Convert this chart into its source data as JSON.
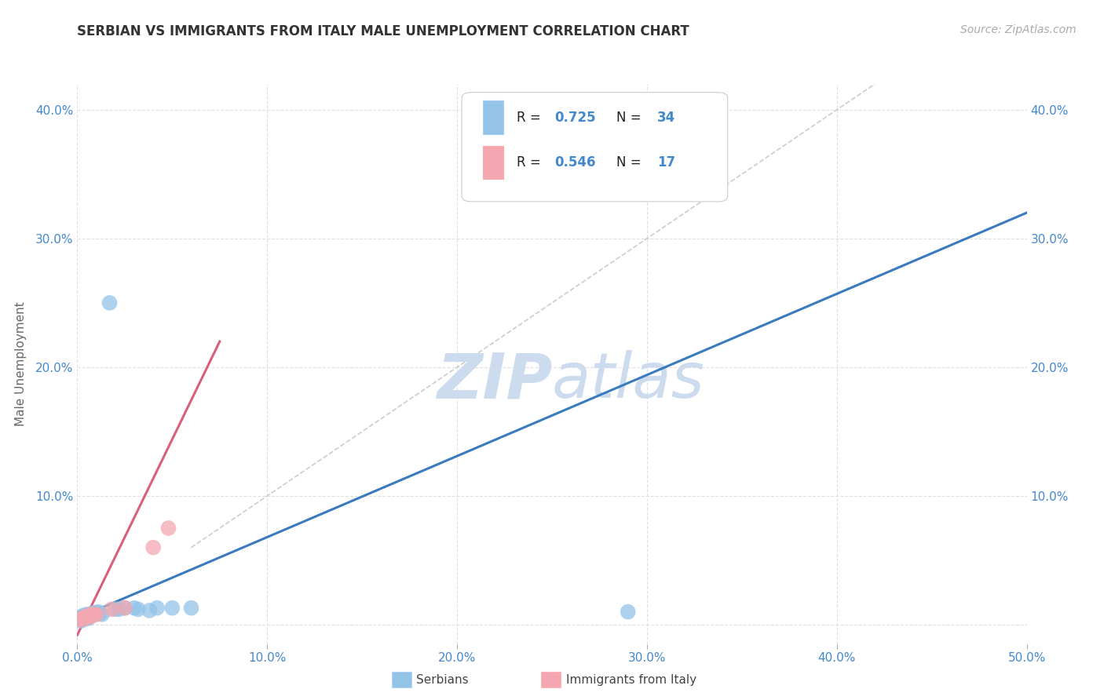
{
  "title": "SERBIAN VS IMMIGRANTS FROM ITALY MALE UNEMPLOYMENT CORRELATION CHART",
  "source": "Source: ZipAtlas.com",
  "ylabel": "Male Unemployment",
  "xmin": 0.0,
  "xmax": 0.5,
  "ymin": -0.015,
  "ymax": 0.42,
  "xticks": [
    0.0,
    0.1,
    0.2,
    0.3,
    0.4,
    0.5
  ],
  "xtick_labels": [
    "0.0%",
    "10.0%",
    "20.0%",
    "30.0%",
    "40.0%",
    "50.0%"
  ],
  "yticks": [
    0.0,
    0.1,
    0.2,
    0.3,
    0.4
  ],
  "ytick_labels": [
    "",
    "10.0%",
    "20.0%",
    "30.0%",
    "40.0%"
  ],
  "legend_r1": "R = 0.725",
  "legend_n1": "N = 34",
  "legend_r2": "R = 0.546",
  "legend_n2": "N = 17",
  "blue_color": "#93c4e8",
  "pink_color": "#f4a7b0",
  "blue_line_color": "#3a7bbf",
  "pink_line_color": "#d9607a",
  "diagonal_color": "#cccccc",
  "title_color": "#333333",
  "axis_color": "#4488cc",
  "grid_color": "#e0e0e0",
  "watermark_text": "ZIPatlas",
  "watermark_color": "#ccdcee",
  "blue_scatter": [
    [
      0.001,
      0.005
    ],
    [
      0.002,
      0.004
    ],
    [
      0.002,
      0.003
    ],
    [
      0.003,
      0.004
    ],
    [
      0.003,
      0.006
    ],
    [
      0.003,
      0.007
    ],
    [
      0.004,
      0.005
    ],
    [
      0.004,
      0.006
    ],
    [
      0.004,
      0.007
    ],
    [
      0.005,
      0.005
    ],
    [
      0.005,
      0.006
    ],
    [
      0.005,
      0.008
    ],
    [
      0.006,
      0.006
    ],
    [
      0.006,
      0.005
    ],
    [
      0.007,
      0.007
    ],
    [
      0.007,
      0.008
    ],
    [
      0.008,
      0.008
    ],
    [
      0.008,
      0.009
    ],
    [
      0.009,
      0.009
    ],
    [
      0.01,
      0.009
    ],
    [
      0.011,
      0.01
    ],
    [
      0.012,
      0.009
    ],
    [
      0.013,
      0.008
    ],
    [
      0.02,
      0.012
    ],
    [
      0.022,
      0.012
    ],
    [
      0.025,
      0.013
    ],
    [
      0.03,
      0.013
    ],
    [
      0.032,
      0.012
    ],
    [
      0.038,
      0.011
    ],
    [
      0.042,
      0.013
    ],
    [
      0.05,
      0.013
    ],
    [
      0.06,
      0.013
    ],
    [
      0.017,
      0.25
    ],
    [
      0.29,
      0.01
    ]
  ],
  "pink_scatter": [
    [
      0.001,
      0.004
    ],
    [
      0.002,
      0.004
    ],
    [
      0.003,
      0.005
    ],
    [
      0.004,
      0.005
    ],
    [
      0.004,
      0.006
    ],
    [
      0.005,
      0.006
    ],
    [
      0.006,
      0.006
    ],
    [
      0.006,
      0.007
    ],
    [
      0.007,
      0.007
    ],
    [
      0.007,
      0.008
    ],
    [
      0.008,
      0.007
    ],
    [
      0.009,
      0.008
    ],
    [
      0.01,
      0.008
    ],
    [
      0.018,
      0.012
    ],
    [
      0.025,
      0.013
    ],
    [
      0.04,
      0.06
    ],
    [
      0.048,
      0.075
    ]
  ],
  "blue_line_x": [
    0.0,
    0.5
  ],
  "blue_line_y": [
    0.005,
    0.32
  ],
  "pink_line_x": [
    0.0,
    0.075
  ],
  "pink_line_y": [
    -0.008,
    0.22
  ],
  "diag_line_x": [
    0.06,
    0.42
  ],
  "diag_line_y": [
    0.06,
    0.42
  ]
}
